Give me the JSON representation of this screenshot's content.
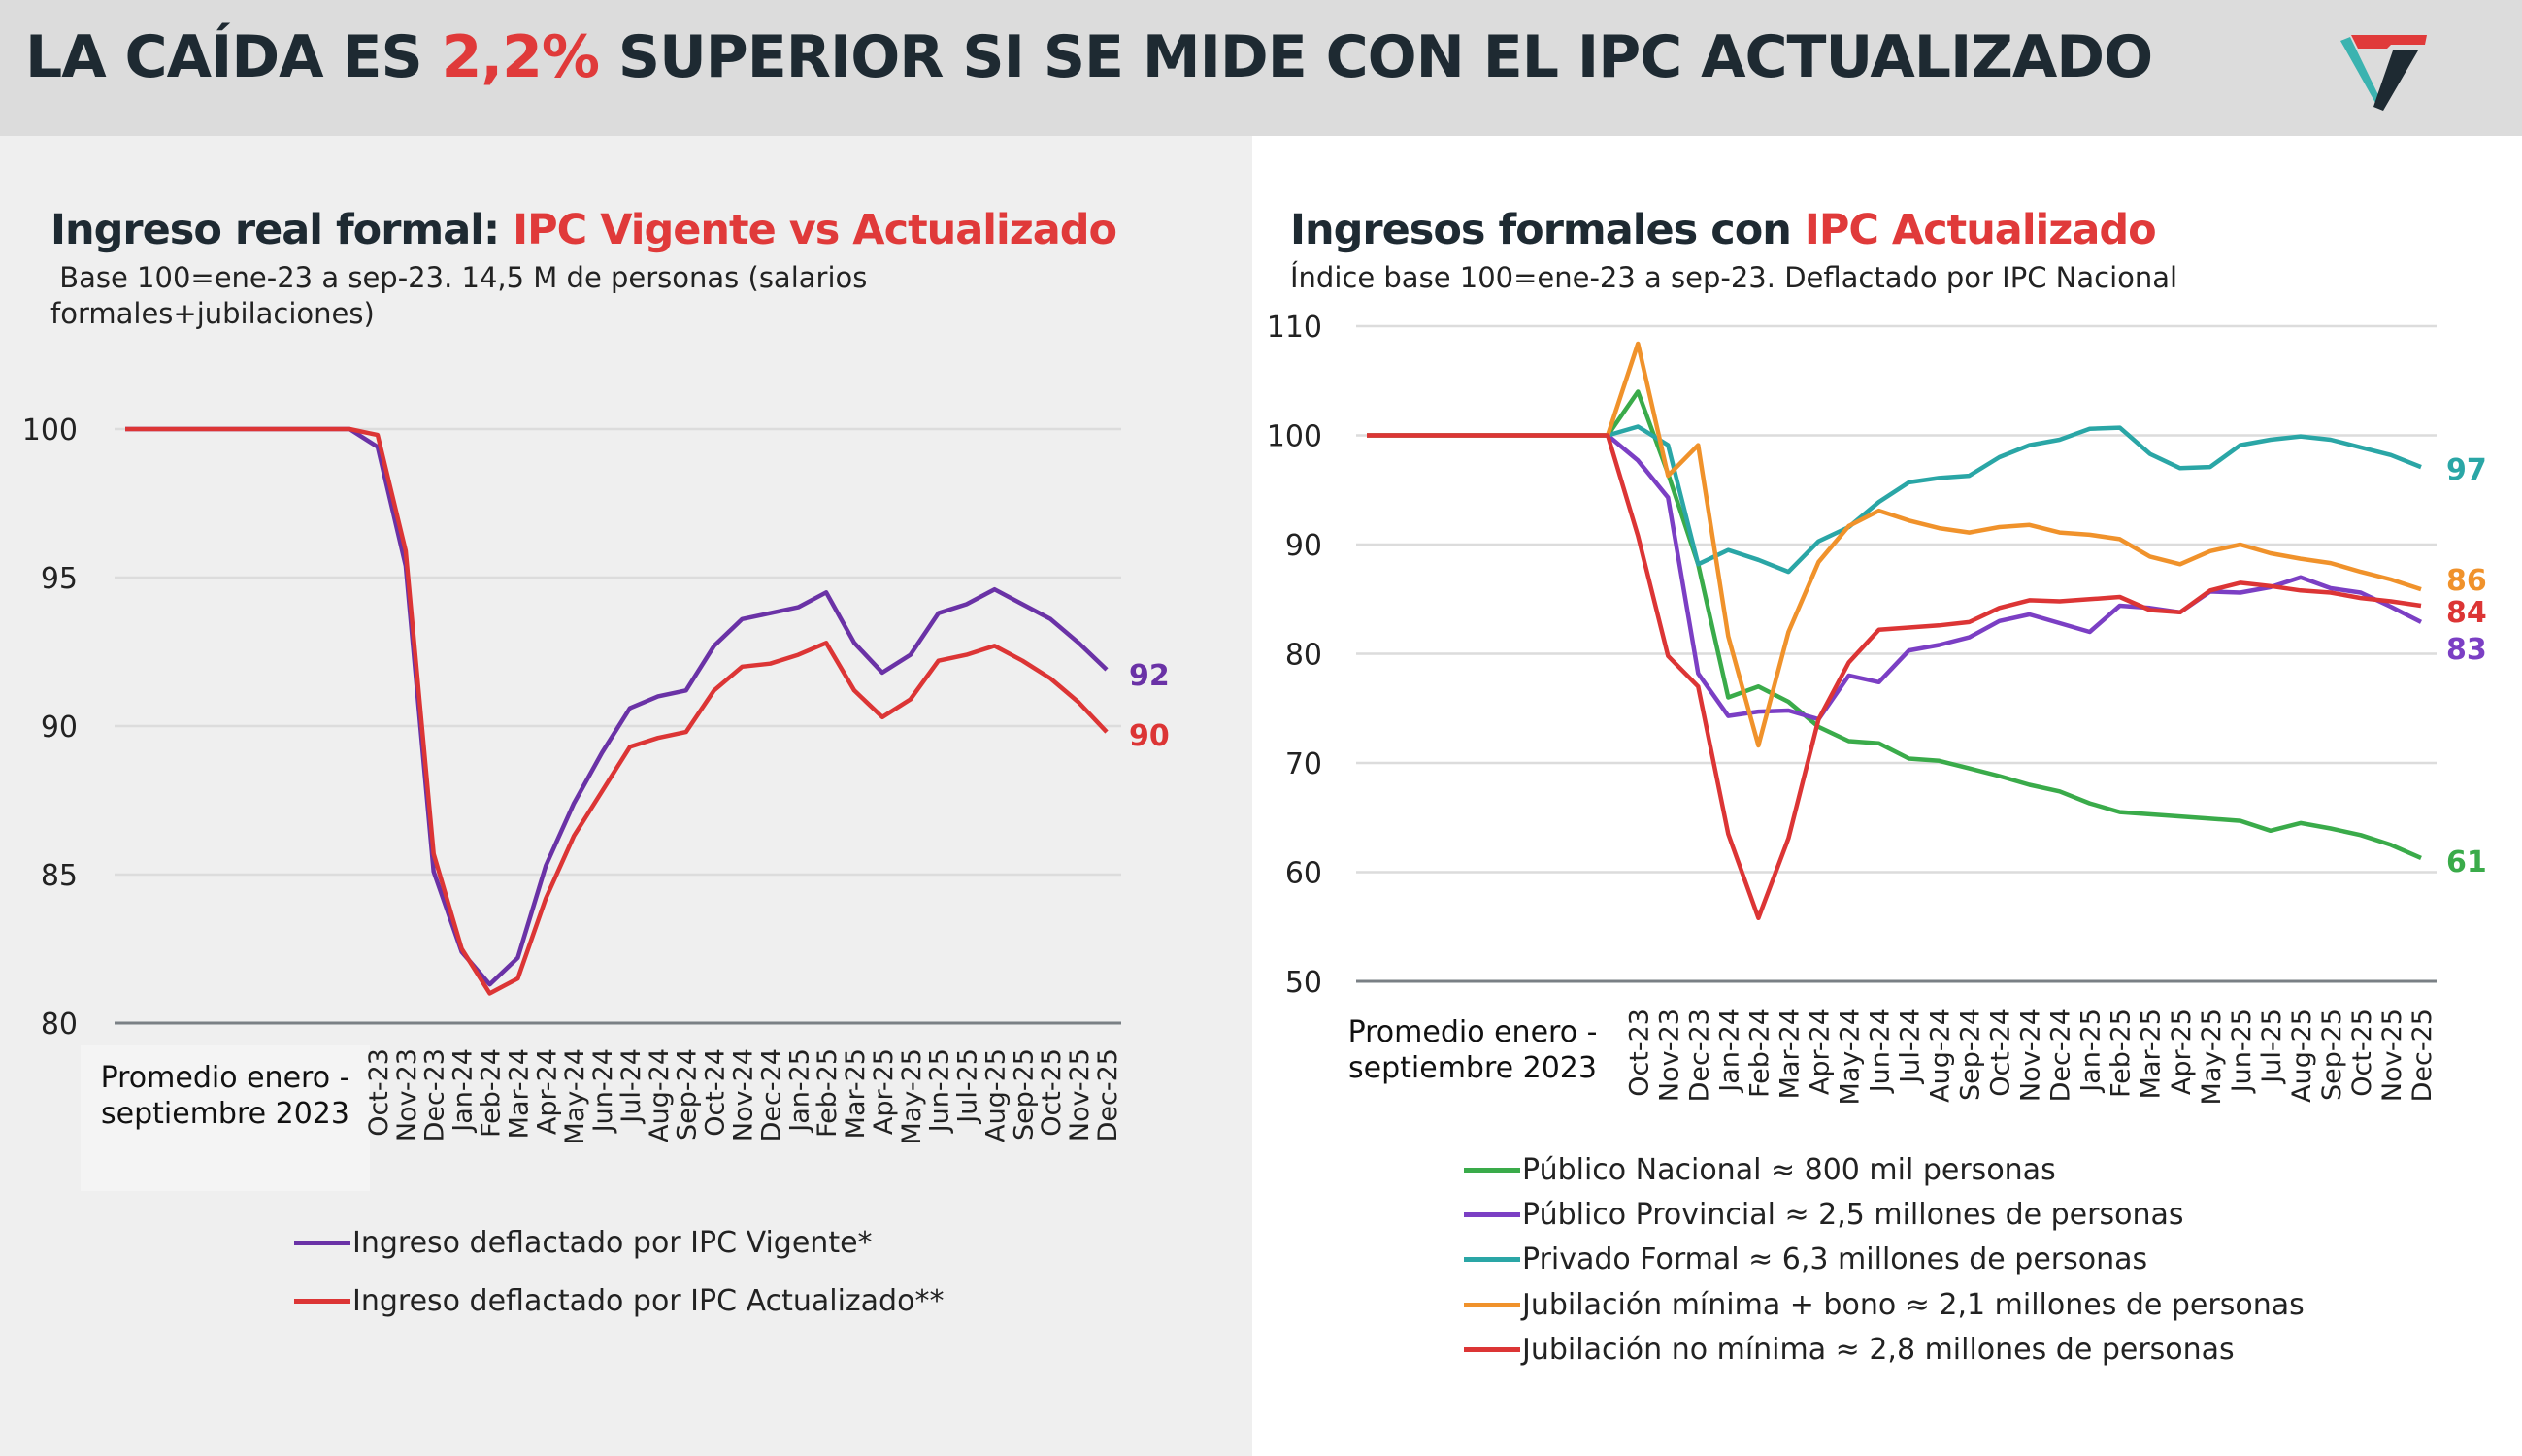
{
  "header": {
    "title_pre": "LA CAÍDA ES ",
    "title_highlight": "2,2%",
    "title_post": " SUPERIOR SI SE MIDE CON EL IPC ACTUALIZADO",
    "highlight_color": "#e03a3a"
  },
  "left": {
    "title_pre": "Ingreso real formal: ",
    "title_highlight": "IPC Vigente vs Actualizado",
    "subtitle_line1": " Base 100=ene-23 a sep-23. 14,5 M de personas (salarios",
    "subtitle_line2": "formales+jubilaciones)"
  },
  "right": {
    "title_pre": "Ingresos formales con ",
    "title_highlight": "IPC Actualizado",
    "subtitle": "Índice base 100=ene-23 a sep-23. Deflactado por IPC Nacional"
  },
  "chart_data": [
    {
      "type": "line",
      "title": "Ingreso real formal: IPC Vigente vs Actualizado",
      "ylim": [
        80,
        100
      ],
      "yticks": [
        100,
        95,
        90,
        85,
        80
      ],
      "grid": true,
      "legend": "bottom",
      "x_group_label": "Promedio enero - septiembre 2023",
      "categories": [
        "",
        "",
        "",
        "",
        "",
        "",
        "",
        "",
        "",
        "Oct-23",
        "Nov-23",
        "Dec-23",
        "Jan-24",
        "Feb-24",
        "Mar-24",
        "Apr-24",
        "May-24",
        "Jun-24",
        "Jul-24",
        "Aug-24",
        "Sep-24",
        "Oct-24",
        "Nov-24",
        "Dec-24",
        "Jan-25",
        "Feb-25",
        "Mar-25",
        "Apr-25",
        "May-25",
        "Jun-25",
        "Jul-25",
        "Aug-25",
        "Sep-25",
        "Oct-25",
        "Nov-25",
        "Dec-25"
      ],
      "series": [
        {
          "name": "Ingreso deflactado por IPC Vigente*",
          "color": "#6a32a6",
          "end_label": "92",
          "values": [
            100,
            100,
            100,
            100,
            100,
            100,
            100,
            100,
            100,
            99.4,
            95.4,
            85.1,
            82.4,
            81.3,
            82.2,
            85.3,
            87.4,
            89.1,
            90.6,
            91.0,
            91.2,
            92.7,
            93.6,
            93.8,
            94.0,
            94.5,
            92.8,
            91.8,
            92.4,
            93.8,
            94.1,
            94.6,
            94.1,
            93.6,
            92.8,
            91.9
          ]
        },
        {
          "name": "Ingreso deflactado por IPC Actualizado**",
          "color": "#dc3535",
          "end_label": "90",
          "values": [
            100,
            100,
            100,
            100,
            100,
            100,
            100,
            100,
            100,
            99.8,
            95.9,
            85.7,
            82.5,
            81.0,
            81.5,
            84.2,
            86.3,
            87.8,
            89.3,
            89.6,
            89.8,
            91.2,
            92.0,
            92.1,
            92.4,
            92.8,
            91.2,
            90.3,
            90.9,
            92.2,
            92.4,
            92.7,
            92.2,
            91.6,
            90.8,
            89.8
          ]
        }
      ]
    },
    {
      "type": "line",
      "title": "Ingresos formales con IPC Actualizado",
      "ylim": [
        50,
        110
      ],
      "yticks": [
        110,
        100,
        90,
        80,
        70,
        60,
        50
      ],
      "grid": true,
      "legend": "bottom",
      "x_group_label": "Promedio enero - septiembre 2023",
      "categories": [
        "",
        "",
        "",
        "",
        "",
        "",
        "",
        "",
        "",
        "Oct-23",
        "Nov-23",
        "Dec-23",
        "Jan-24",
        "Feb-24",
        "Mar-24",
        "Apr-24",
        "May-24",
        "Jun-24",
        "Jul-24",
        "Aug-24",
        "Sep-24",
        "Oct-24",
        "Nov-24",
        "Dec-24",
        "Jan-25",
        "Feb-25",
        "Mar-25",
        "Apr-25",
        "May-25",
        "Jun-25",
        "Jul-25",
        "Aug-25",
        "Sep-25",
        "Oct-25",
        "Nov-25",
        "Dec-25"
      ],
      "series": [
        {
          "name": "Público Nacional ≈ 800 mil personas",
          "color": "#3aab4a",
          "end_label": "61",
          "values": [
            100,
            100,
            100,
            100,
            100,
            100,
            100,
            100,
            100,
            104.0,
            96.5,
            88.2,
            76.0,
            77.0,
            75.6,
            73.3,
            72.0,
            71.8,
            70.4,
            70.2,
            69.5,
            68.8,
            68.0,
            67.4,
            66.3,
            65.5,
            65.3,
            65.1,
            64.9,
            64.7,
            63.8,
            64.5,
            64.0,
            63.4,
            62.5,
            61.3
          ]
        },
        {
          "name": "Público Provincial ≈ 2,5 millones de personas",
          "color": "#7b3fc4",
          "end_label": "83",
          "values": [
            100,
            100,
            100,
            100,
            100,
            100,
            100,
            100,
            100,
            97.7,
            94.3,
            78.2,
            74.3,
            74.7,
            74.8,
            74.0,
            78.0,
            77.4,
            80.3,
            80.8,
            81.5,
            83.0,
            83.6,
            82.8,
            82.0,
            84.4,
            84.2,
            83.8,
            85.7,
            85.6,
            86.1,
            87.0,
            86.0,
            85.6,
            84.3,
            82.9
          ]
        },
        {
          "name": "Privado Formal ≈ 6,3 millones de personas",
          "color": "#2aa6a6",
          "end_label": "97",
          "values": [
            100,
            100,
            100,
            100,
            100,
            100,
            100,
            100,
            100,
            100.8,
            99.1,
            88.2,
            89.5,
            88.6,
            87.5,
            90.3,
            91.6,
            93.9,
            95.7,
            96.1,
            96.3,
            98.0,
            99.1,
            99.6,
            100.6,
            100.7,
            98.3,
            97.0,
            97.1,
            99.1,
            99.6,
            99.9,
            99.6,
            98.9,
            98.2,
            97.1
          ]
        },
        {
          "name": "Jubilación mínima + bono ≈ 2,1 millones de personas",
          "color": "#f0922b",
          "end_label": "86",
          "values": [
            100,
            100,
            100,
            100,
            100,
            100,
            100,
            100,
            100,
            108.4,
            96.3,
            99.1,
            81.6,
            71.6,
            82.0,
            88.4,
            91.7,
            93.1,
            92.2,
            91.5,
            91.1,
            91.6,
            91.8,
            91.1,
            90.9,
            90.5,
            88.9,
            88.2,
            89.4,
            90.0,
            89.2,
            88.7,
            88.3,
            87.5,
            86.8,
            85.9
          ]
        },
        {
          "name": "Jubilación no mínima ≈ 2,8 millones de personas",
          "color": "#dc3535",
          "end_label": "84",
          "values": [
            100,
            100,
            100,
            100,
            100,
            100,
            100,
            100,
            100,
            90.8,
            79.8,
            77.0,
            63.5,
            55.8,
            63.1,
            74.0,
            79.2,
            82.2,
            82.4,
            82.6,
            82.9,
            84.2,
            84.9,
            84.8,
            85.0,
            85.2,
            84.0,
            83.8,
            85.8,
            86.5,
            86.2,
            85.8,
            85.6,
            85.1,
            84.8,
            84.4
          ]
        }
      ]
    }
  ]
}
